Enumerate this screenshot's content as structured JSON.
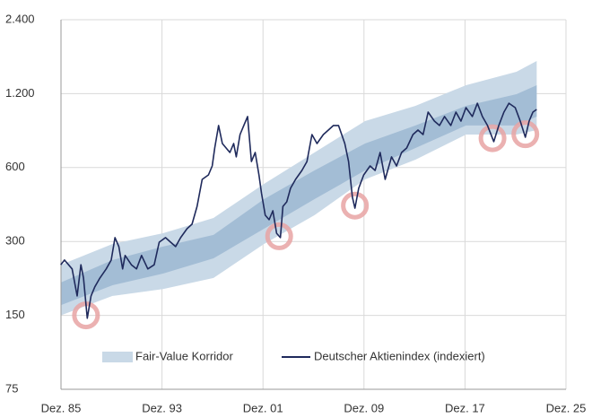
{
  "chart_data": {
    "type": "line",
    "log_scale_y": true,
    "grid": true,
    "legend_position": "bottom",
    "xlim": [
      1985.92,
      2025.92
    ],
    "xticks": [
      {
        "value": 1985.92,
        "label": "Dez. 85"
      },
      {
        "value": 1993.92,
        "label": "Dez. 93"
      },
      {
        "value": 2001.92,
        "label": "Dez. 01"
      },
      {
        "value": 2009.92,
        "label": "Dez. 09"
      },
      {
        "value": 2017.92,
        "label": "Dez. 17"
      },
      {
        "value": 2025.92,
        "label": "Dez. 25"
      }
    ],
    "ylim": [
      75,
      2400
    ],
    "yticks": [
      75,
      150,
      300,
      600,
      {
        "value": 1200,
        "label": "1.200"
      },
      {
        "value": 2400,
        "label": "2.400"
      }
    ],
    "corridor": {
      "name": "Fair-Value Korridor",
      "color": "#c9d9e7",
      "inner_color": "#a3bdd5",
      "x": [
        1985.9,
        1990.0,
        1994.0,
        1998.0,
        2002.0,
        2006.0,
        2010.0,
        2014.0,
        2018.0,
        2022.0,
        2023.6
      ],
      "outer_upper": [
        241,
        293,
        324,
        374,
        515,
        691,
        928,
        1070,
        1299,
        1473,
        1630
      ],
      "inner_upper": [
        204,
        252,
        286,
        319,
        446,
        584,
        752,
        890,
        1070,
        1194,
        1299
      ],
      "inner_lower": [
        165,
        199,
        222,
        256,
        338,
        446,
        584,
        721,
        890,
        890,
        968
      ],
      "outer_lower": [
        150,
        180,
        192,
        213,
        293,
        384,
        537,
        646,
        818,
        818,
        853
      ]
    },
    "series": [
      {
        "name": "Deutscher Aktienindex (indexiert)",
        "color": "#1f2a5c",
        "x": [
          1985.9,
          1986.2,
          1986.8,
          1987.2,
          1987.5,
          1987.7,
          1988.0,
          1988.3,
          1988.6,
          1989.0,
          1989.5,
          1989.9,
          1990.2,
          1990.5,
          1990.8,
          1991.0,
          1991.5,
          1991.9,
          1992.3,
          1992.8,
          1993.3,
          1993.7,
          1994.2,
          1994.6,
          1995.0,
          1995.4,
          1995.9,
          1996.3,
          1996.7,
          1997.1,
          1997.6,
          1997.9,
          1998.1,
          1998.4,
          1998.7,
          1999.0,
          1999.3,
          1999.6,
          1999.8,
          2000.1,
          2000.4,
          2000.7,
          2001.0,
          2001.3,
          2001.6,
          2001.8,
          2002.1,
          2002.4,
          2002.7,
          2003.0,
          2003.3,
          2003.5,
          2003.8,
          2004.1,
          2004.5,
          2005.0,
          2005.4,
          2005.8,
          2006.2,
          2006.7,
          2007.1,
          2007.5,
          2007.9,
          2008.4,
          2008.7,
          2009.0,
          2009.2,
          2009.5,
          2009.9,
          2010.4,
          2010.8,
          2011.2,
          2011.6,
          2012.1,
          2012.5,
          2012.9,
          2013.3,
          2013.8,
          2014.2,
          2014.6,
          2015.0,
          2015.5,
          2015.9,
          2016.3,
          2016.8,
          2017.2,
          2017.6,
          2018.0,
          2018.5,
          2018.9,
          2019.3,
          2019.7,
          2020.2,
          2020.6,
          2021.0,
          2021.4,
          2021.9,
          2022.3,
          2022.7,
          2023.0,
          2023.3,
          2023.6
        ],
        "values": [
          241,
          252,
          232,
          180,
          241,
          213,
          146,
          180,
          196,
          213,
          232,
          252,
          311,
          286,
          232,
          263,
          241,
          232,
          263,
          232,
          241,
          298,
          311,
          298,
          286,
          311,
          338,
          353,
          417,
          537,
          560,
          609,
          721,
          890,
          752,
          721,
          691,
          752,
          663,
          818,
          890,
          968,
          635,
          691,
          560,
          473,
          384,
          368,
          400,
          324,
          311,
          417,
          435,
          494,
          537,
          584,
          635,
          818,
          752,
          818,
          853,
          890,
          890,
          752,
          635,
          454,
          410,
          494,
          560,
          609,
          584,
          691,
          537,
          663,
          609,
          691,
          721,
          818,
          853,
          818,
          1009,
          928,
          890,
          968,
          890,
          1009,
          928,
          1052,
          968,
          1097,
          968,
          890,
          765,
          890,
          1009,
          1097,
          1052,
          928,
          797,
          928,
          1009,
          1035
        ]
      }
    ],
    "highlights": {
      "color": "#e8a3a3",
      "x": [
        1987.9,
        2003.2,
        2009.2,
        2020.1,
        2022.7
      ],
      "values": [
        150,
        315,
        420,
        790,
        820
      ]
    }
  }
}
